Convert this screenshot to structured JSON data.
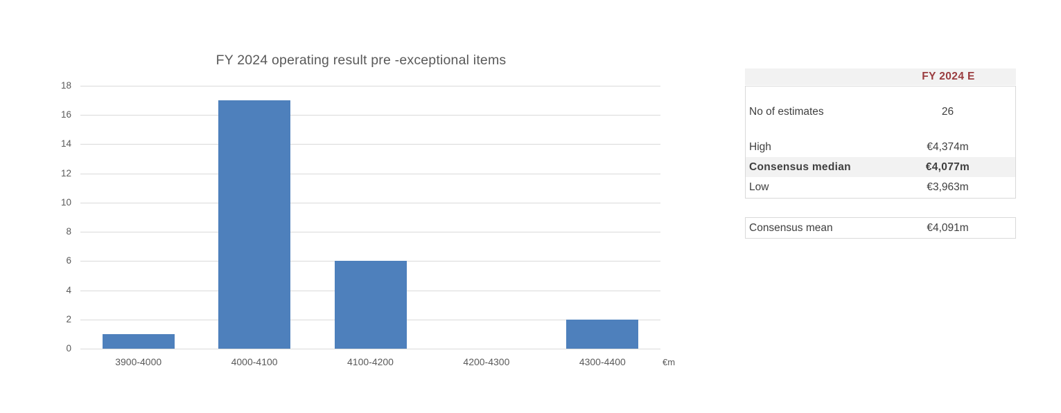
{
  "chart": {
    "axis_unit_label": "€m"
  },
  "chart_data": {
    "type": "bar",
    "title": "FY 2024 operating result pre -exceptional items",
    "categories": [
      "3900-4000",
      "4000-4100",
      "4100-4200",
      "4200-4300",
      "4300-4400"
    ],
    "values": [
      1,
      17,
      6,
      0,
      2
    ],
    "xlabel": "€m",
    "ylabel": "",
    "ylim": [
      0,
      18
    ],
    "ytick_step": 2,
    "grid": true,
    "legend_position": "none",
    "bar_color": "#4E80BC"
  },
  "table": {
    "header": {
      "value": "FY 2024 E"
    },
    "rows": [
      {
        "label": "No of estimates",
        "value": "26"
      },
      {
        "label": "High",
        "value": "€4,374m"
      },
      {
        "label": "Consensus median",
        "value": "€4,077m"
      },
      {
        "label": "Low",
        "value": "€3,963m"
      }
    ],
    "footer": {
      "label": "Consensus mean",
      "value": "€4,091m"
    }
  },
  "colors": {
    "bar": "#4E80BC",
    "gridline": "#D9D9D9",
    "axis_text": "#595959",
    "title_text": "#595959",
    "table_text": "#3F3F3F",
    "header_text": "#9A3C3F",
    "header_bg": "#F2F2F2",
    "highlight_row_bg": "#F2F2F2",
    "border": "#D9D9D9",
    "page_bg": "#FFFFFF"
  }
}
